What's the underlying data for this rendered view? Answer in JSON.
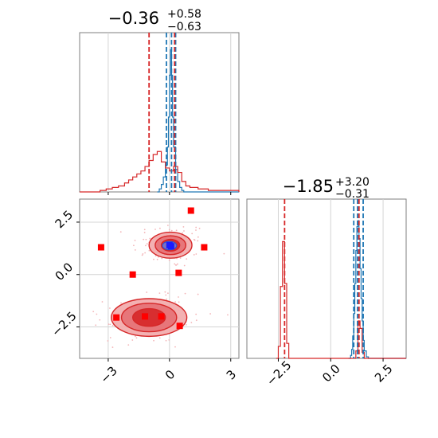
{
  "chart_data": [
    {
      "panel": "top-left",
      "type": "histogram",
      "title": {
        "median": "−0.36",
        "plus": "+0.58",
        "minus": "−0.63"
      },
      "xlim": [
        -4.4,
        3.4
      ],
      "x_ticks": [
        -3,
        0,
        3
      ],
      "x_tick_labels": [
        "−3",
        "0",
        "3"
      ],
      "y_ticks_visible": false,
      "grid": true,
      "series": [
        {
          "color": "#1f77b4",
          "bins": [
            [
              -0.6,
              0.0
            ],
            [
              -0.5,
              0.02
            ],
            [
              -0.4,
              0.05
            ],
            [
              -0.3,
              0.1
            ],
            [
              -0.2,
              0.18
            ],
            [
              -0.1,
              0.3
            ],
            [
              -0.05,
              0.5
            ],
            [
              0.0,
              0.78
            ],
            [
              0.05,
              0.95
            ],
            [
              0.1,
              0.78
            ],
            [
              0.15,
              0.5
            ],
            [
              0.2,
              0.3
            ],
            [
              0.3,
              0.15
            ],
            [
              0.4,
              0.07
            ],
            [
              0.5,
              0.03
            ],
            [
              0.6,
              0.01
            ],
            [
              0.7,
              0.0
            ]
          ],
          "vlines": [
            -0.15,
            0.1,
            0.3
          ]
        },
        {
          "color": "#d62728",
          "bins": [
            [
              -4.4,
              0.0
            ],
            [
              -3.4,
              0.01
            ],
            [
              -3.1,
              0.02
            ],
            [
              -2.8,
              0.03
            ],
            [
              -2.5,
              0.04
            ],
            [
              -2.2,
              0.06
            ],
            [
              -2.0,
              0.08
            ],
            [
              -1.8,
              0.1
            ],
            [
              -1.6,
              0.12
            ],
            [
              -1.4,
              0.14
            ],
            [
              -1.2,
              0.17
            ],
            [
              -1.0,
              0.21
            ],
            [
              -0.8,
              0.25
            ],
            [
              -0.6,
              0.27
            ],
            [
              -0.4,
              0.2
            ],
            [
              -0.2,
              0.16
            ],
            [
              0.0,
              0.14
            ],
            [
              0.2,
              0.17
            ],
            [
              0.4,
              0.13
            ],
            [
              0.6,
              0.07
            ],
            [
              0.8,
              0.04
            ],
            [
              1.0,
              0.03
            ],
            [
              1.4,
              0.02
            ],
            [
              1.9,
              0.01
            ],
            [
              2.5,
              0.01
            ],
            [
              3.4,
              0.0
            ]
          ],
          "vlines": [
            -1.0,
            0.25
          ]
        }
      ]
    },
    {
      "panel": "bottom-left",
      "type": "contour-scatter",
      "xlim": [
        -4.4,
        3.4
      ],
      "ylim": [
        -4.0,
        3.6
      ],
      "x_ticks": [
        -3,
        0,
        3
      ],
      "x_tick_labels": [
        "−3",
        "0",
        "3"
      ],
      "y_ticks": [
        -2.5,
        0.0,
        2.5
      ],
      "y_tick_labels": [
        "−2.5",
        "0.0",
        "2.5"
      ],
      "grid": true,
      "contours": [
        {
          "center": [
            0.05,
            1.4
          ],
          "radii": [
            [
              1.05,
              0.62
            ],
            [
              0.75,
              0.45
            ],
            [
              0.45,
              0.28
            ]
          ],
          "color": "#d62728"
        },
        {
          "center": [
            -1.0,
            -2.05
          ],
          "radii": [
            [
              1.85,
              0.9
            ],
            [
              1.35,
              0.68
            ],
            [
              0.8,
              0.42
            ]
          ],
          "color": "#d62728"
        }
      ],
      "blue_region": {
        "center": [
          0.0,
          1.38
        ],
        "radii": [
          0.35,
          0.2
        ],
        "color": "#1f4fd6"
      },
      "blue_points": [
        [
          0.0,
          1.4
        ],
        [
          0.08,
          1.35
        ]
      ],
      "red_squares": [
        [
          1.05,
          3.05
        ],
        [
          -3.35,
          1.3
        ],
        [
          1.7,
          1.3
        ],
        [
          -1.8,
          0.0
        ],
        [
          0.45,
          0.08
        ],
        [
          -2.6,
          -2.05
        ],
        [
          -1.2,
          -2.0
        ],
        [
          -0.4,
          -2.0
        ],
        [
          0.5,
          -2.45
        ]
      ]
    },
    {
      "panel": "bottom-right",
      "type": "histogram",
      "title": {
        "median": "−1.85",
        "plus": "+3.20",
        "minus": "−0.31"
      },
      "xlim": [
        -4.0,
        3.6
      ],
      "x_ticks": [
        -2.5,
        0.0,
        2.5
      ],
      "x_tick_labels": [
        "−2.5",
        "0.0",
        "2.5"
      ],
      "y_ticks_visible": false,
      "grid": true,
      "series": [
        {
          "color": "#1f77b4",
          "bins": [
            [
              0.85,
              0.0
            ],
            [
              0.95,
              0.02
            ],
            [
              1.0,
              0.06
            ],
            [
              1.05,
              0.15
            ],
            [
              1.1,
              0.3
            ],
            [
              1.15,
              0.5
            ],
            [
              1.2,
              0.72
            ],
            [
              1.25,
              0.88
            ],
            [
              1.3,
              0.92
            ],
            [
              1.35,
              0.8
            ],
            [
              1.4,
              0.6
            ],
            [
              1.45,
              0.4
            ],
            [
              1.5,
              0.25
            ],
            [
              1.55,
              0.12
            ],
            [
              1.6,
              0.05
            ],
            [
              1.7,
              0.01
            ],
            [
              1.8,
              0.0
            ]
          ],
          "vlines": [
            1.1,
            1.28,
            1.55
          ]
        },
        {
          "color": "#d62728",
          "bins": [
            [
              -2.6,
              0.0
            ],
            [
              -2.5,
              0.08
            ],
            [
              -2.4,
              0.48
            ],
            [
              -2.3,
              0.78
            ],
            [
              -2.2,
              0.5
            ],
            [
              -2.1,
              0.1
            ],
            [
              -2.0,
              0.0
            ],
            [
              1.1,
              0.0
            ],
            [
              1.2,
              0.05
            ],
            [
              1.3,
              0.25
            ],
            [
              1.4,
              0.2
            ],
            [
              1.5,
              0.04
            ],
            [
              1.6,
              0.0
            ]
          ],
          "vlines": [
            -2.2,
            1.35
          ]
        }
      ]
    }
  ]
}
